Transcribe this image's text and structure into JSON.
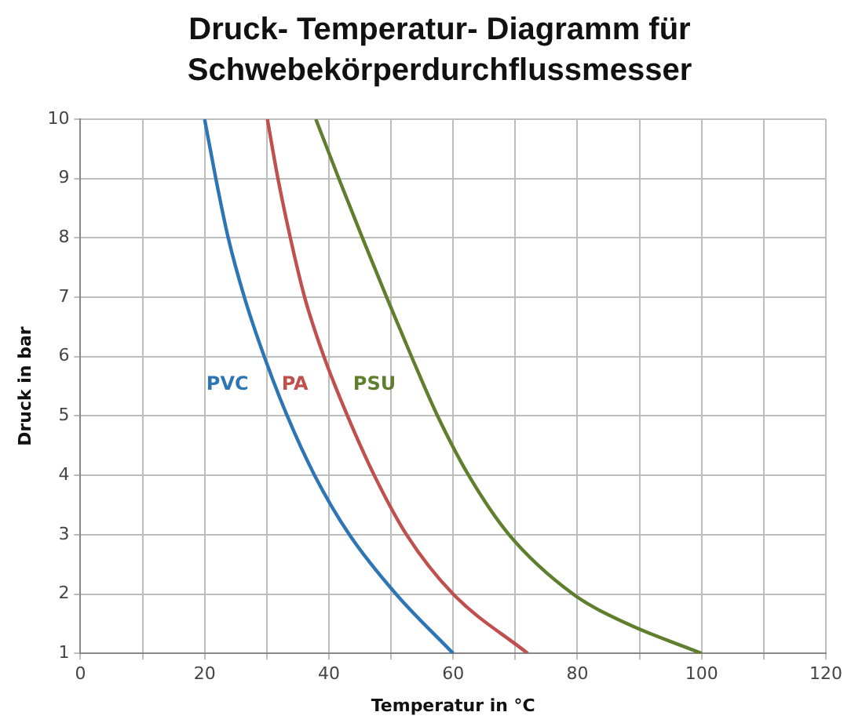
{
  "chart_data": {
    "type": "line",
    "title": "Druck- Temperatur- Diagramm für Schwebekörperdurchflussmesser",
    "xlabel": "Temperatur in °C",
    "ylabel": "Druck in bar",
    "xlim": [
      0,
      120
    ],
    "ylim": [
      1,
      10
    ],
    "xticks": [
      0,
      {
        "value": 10,
        "label": null
      },
      20,
      {
        "value": 30,
        "label": null
      },
      40,
      {
        "value": 50,
        "label": null
      },
      60,
      {
        "value": 70,
        "label": null
      },
      80,
      {
        "value": 90,
        "label": null
      },
      100,
      {
        "value": 110,
        "label": null
      },
      120
    ],
    "yticks": [
      1,
      2,
      3,
      4,
      5,
      6,
      7,
      8,
      9,
      10
    ],
    "grid": true,
    "legend": false,
    "marker": "none",
    "line_style": "solid",
    "series": [
      {
        "name": "PVC",
        "color": "#2e75b6",
        "x": [
          20,
          21.8,
          23.8,
          26.4,
          29.6,
          33.3,
          37.7,
          43.3,
          50.8,
          60
        ],
        "values": [
          10,
          9,
          8,
          7,
          6,
          5,
          4,
          3,
          2,
          1
        ]
      },
      {
        "name": "PA",
        "color": "#c0504d",
        "x": [
          30.1,
          31.8,
          33.8,
          36.1,
          39.2,
          43,
          47.3,
          52.5,
          60,
          72
        ],
        "values": [
          10,
          9,
          8,
          7,
          6,
          5,
          4,
          3,
          2,
          1
        ]
      },
      {
        "name": "PSU",
        "color": "#5f7f2f",
        "x": [
          37.9,
          41.6,
          45.4,
          49.3,
          53.3,
          57.5,
          62.5,
          69,
          79.3,
          88,
          100
        ],
        "values": [
          10,
          9,
          8,
          7,
          6,
          5,
          4,
          3,
          2,
          1.5,
          1
        ]
      }
    ]
  }
}
